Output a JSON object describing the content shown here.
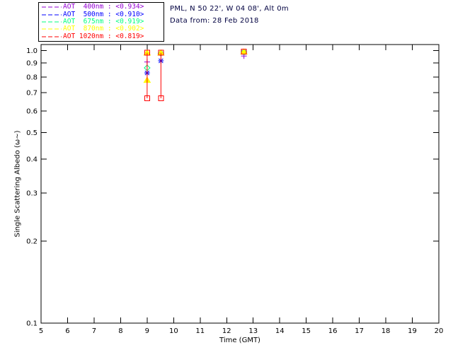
{
  "header": {
    "line1": "PML, N 50 22', W 04 08', Alt 0m",
    "line2": "Data from: 28 Feb 2018",
    "color": "#000040"
  },
  "legend": {
    "rows": [
      {
        "label": "AOT  400nm : <0.934>",
        "color": "#9400d3"
      },
      {
        "label": "AOT  500nm : <0.910>",
        "color": "#0000ff"
      },
      {
        "label": "AOT  675nm : <0.919>",
        "color": "#00ff7f"
      },
      {
        "label": "AOT  870nm : <0.902>",
        "color": "#ffff00"
      },
      {
        "label": "AOT 1020nm : <0.819>",
        "color": "#ff0000"
      }
    ]
  },
  "chart_data": {
    "type": "scatter",
    "title": "",
    "x_axis": {
      "label": "Time (GMT)",
      "min": 5,
      "max": 20,
      "ticks": [
        5,
        6,
        7,
        8,
        9,
        10,
        11,
        12,
        13,
        14,
        15,
        16,
        17,
        18,
        19,
        20
      ],
      "tick_labels": [
        "5",
        "6",
        "7",
        "8",
        "9",
        "10",
        "11",
        "12",
        "13",
        "14",
        "15",
        "16",
        "17",
        "18",
        "19",
        "20"
      ]
    },
    "y_axis": {
      "label": "Single Scattering Albedo (ω~)",
      "scale": "log",
      "min": 0.1,
      "max": 1.05,
      "ticks": [
        1.0,
        0.9,
        0.8,
        0.7,
        0.6,
        0.5,
        0.4,
        0.3,
        0.2,
        0.1
      ],
      "tick_labels": [
        "1.0",
        "0.9",
        "0.8",
        "0.7",
        "0.6",
        "0.5",
        "0.4",
        "0.3",
        "0.2",
        "0.1"
      ]
    },
    "grid": false,
    "legend_position": "top-left-outside",
    "series": [
      {
        "name": "AOT 400nm",
        "mean_value": "<0.934>",
        "color": "#9400d3",
        "marker": "plus",
        "points": [
          [
            9.0,
            0.908
          ],
          [
            9.52,
            0.975
          ],
          [
            12.65,
            0.955
          ]
        ]
      },
      {
        "name": "AOT 500nm",
        "mean_value": "<0.910>",
        "color": "#0000ff",
        "marker": "asterisk",
        "points": [
          [
            9.0,
            0.828
          ],
          [
            9.52,
            0.917
          ],
          [
            12.65,
            0.985
          ]
        ]
      },
      {
        "name": "AOT 675nm",
        "mean_value": "<0.919>",
        "color": "#00ff7f",
        "marker": "diamond",
        "points": [
          [
            9.0,
            0.864
          ],
          [
            9.52,
            0.978
          ],
          [
            12.65,
            0.988
          ]
        ]
      },
      {
        "name": "AOT 870nm",
        "mean_value": "<0.902>",
        "color": "#ffff00",
        "marker": "triangle",
        "points": [
          [
            9.0,
            0.78
          ],
          [
            9.0,
            0.982
          ],
          [
            9.52,
            0.982
          ],
          [
            12.65,
            0.99
          ]
        ]
      },
      {
        "name": "AOT 1020nm",
        "mean_value": "<0.819>",
        "color": "#ff0000",
        "marker": "square",
        "points": [
          [
            9.0,
            0.982
          ],
          [
            9.0,
            0.668
          ],
          [
            9.52,
            0.982
          ],
          [
            9.52,
            0.668
          ],
          [
            12.65,
            0.992
          ]
        ],
        "segments": [
          [
            [
              9.0,
              0.982
            ],
            [
              9.0,
              0.668
            ]
          ],
          [
            [
              9.52,
              0.982
            ],
            [
              9.52,
              0.668
            ]
          ]
        ]
      }
    ]
  }
}
